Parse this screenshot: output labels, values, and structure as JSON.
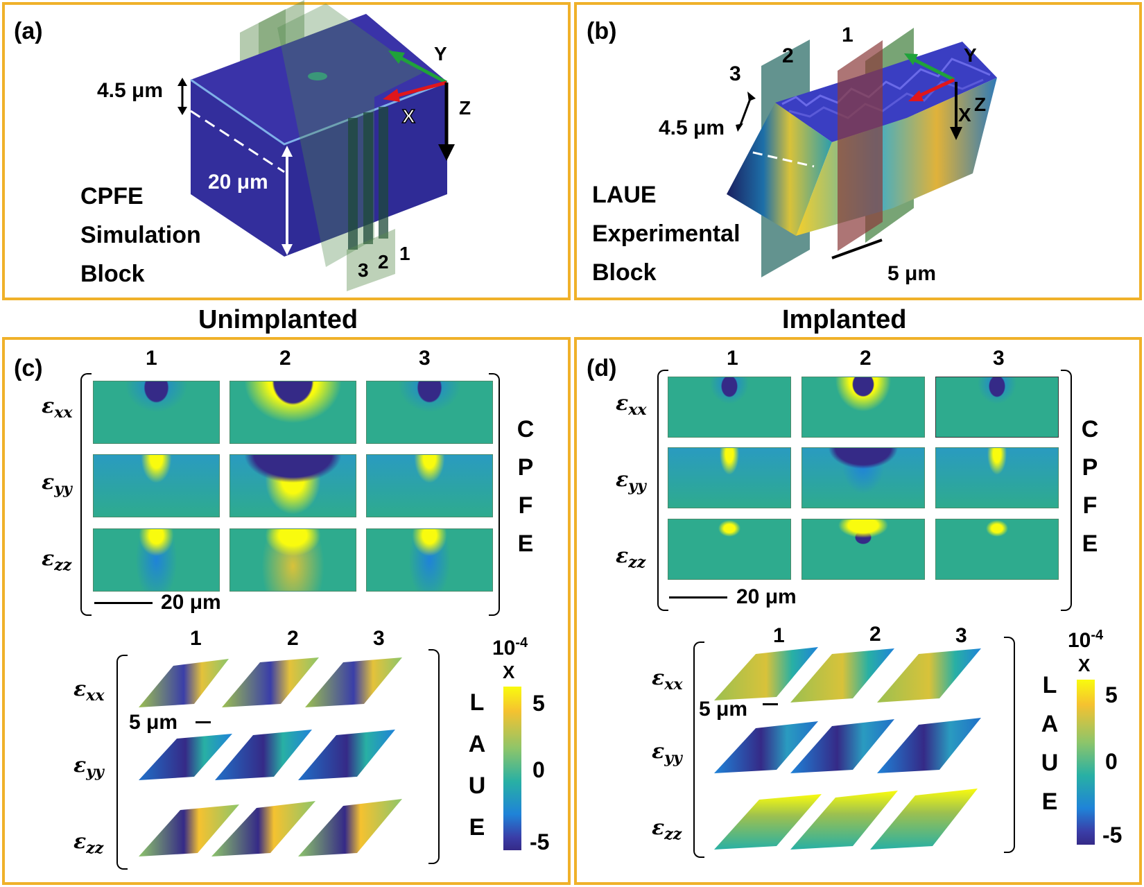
{
  "panel_a": {
    "label": "(a)",
    "thickness": "4.5 μm",
    "depth": "20 μm",
    "title_lines": [
      "CPFE",
      "Simulation",
      "Block"
    ],
    "axes": {
      "x": "X",
      "y": "Y",
      "z": "Z"
    },
    "planes": [
      "1",
      "2",
      "3"
    ]
  },
  "panel_b": {
    "label": "(b)",
    "thickness": "4.5 μm",
    "scale": "5 μm",
    "title_lines": [
      "LAUE",
      "Experimental",
      "Block"
    ],
    "axes": {
      "x": "X",
      "y": "Y",
      "z": "Z"
    },
    "planes": [
      "1",
      "2",
      "3"
    ]
  },
  "headings": {
    "left": "Unimplanted",
    "right": "Implanted"
  },
  "panel_c": {
    "label": "(c)",
    "columns": [
      "1",
      "2",
      "3"
    ],
    "rows": [
      {
        "base": "ε",
        "sub": "xx"
      },
      {
        "base": "ε",
        "sub": "yy"
      },
      {
        "base": "ε",
        "sub": "zz"
      }
    ],
    "cpfe_side": [
      "C",
      "P",
      "F",
      "E"
    ],
    "cpfe_scale": "20 μm",
    "laue_columns": [
      "1",
      "2",
      "3"
    ],
    "laue_scale": "5 μm",
    "laue_side": [
      "L",
      "A",
      "U",
      "E"
    ],
    "colorbar": {
      "exponent_base": "10",
      "exponent": "-4",
      "times": "X",
      "ticks": [
        "5",
        "0",
        "-5"
      ]
    }
  },
  "panel_d": {
    "label": "(d)",
    "columns": [
      "1",
      "2",
      "3"
    ],
    "rows": [
      {
        "base": "ε",
        "sub": "xx"
      },
      {
        "base": "ε",
        "sub": "yy"
      },
      {
        "base": "ε",
        "sub": "zz"
      }
    ],
    "cpfe_side": [
      "C",
      "P",
      "F",
      "E"
    ],
    "cpfe_scale": "20 μm",
    "laue_columns": [
      "1",
      "2",
      "3"
    ],
    "laue_scale": "5 μm",
    "laue_side": [
      "L",
      "A",
      "U",
      "E"
    ],
    "colorbar": {
      "exponent_base": "10",
      "exponent": "-4",
      "times": "X",
      "ticks": [
        "5",
        "0",
        "-5"
      ]
    }
  },
  "colors": {
    "frame": "#F0B12A",
    "block": "#33309A",
    "field_mid": "#2EAB8E",
    "high": "#F9FB0E",
    "low": "#352A87"
  }
}
